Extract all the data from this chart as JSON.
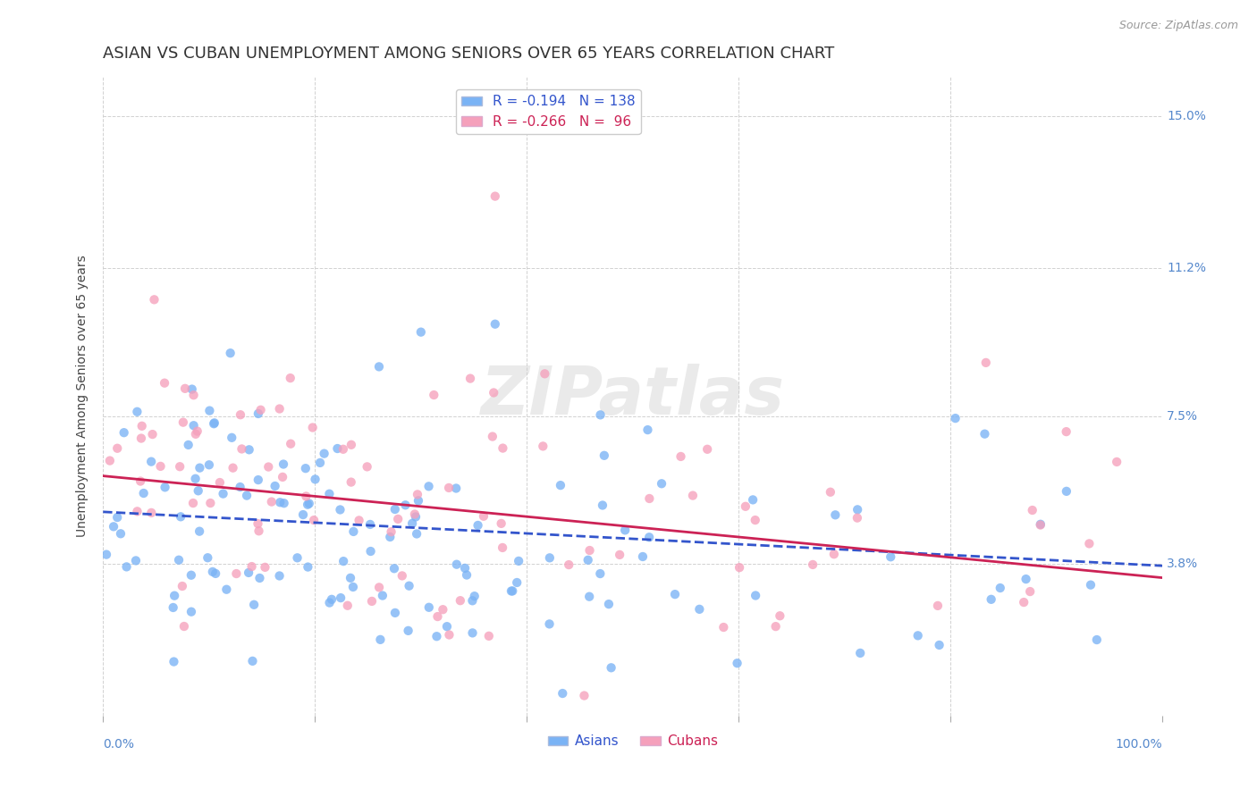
{
  "title": "ASIAN VS CUBAN UNEMPLOYMENT AMONG SENIORS OVER 65 YEARS CORRELATION CHART",
  "source": "Source: ZipAtlas.com",
  "ylabel": "Unemployment Among Seniors over 65 years",
  "xlim": [
    0.0,
    1.0
  ],
  "ylim": [
    0.0,
    0.16
  ],
  "asian_color": "#7ab3f5",
  "cuban_color": "#f5a0bb",
  "asian_line_color": "#3355cc",
  "cuban_line_color": "#cc2255",
  "background_color": "#ffffff",
  "grid_color": "#cccccc",
  "watermark": "ZIPatlas",
  "title_fontsize": 13,
  "axis_label_fontsize": 10,
  "tick_fontsize": 10,
  "legend_fontsize": 11,
  "asian_R": -0.194,
  "asian_N": 138,
  "cuban_R": -0.266,
  "cuban_N": 96,
  "asian_intercept": 0.051,
  "asian_slope": -0.0135,
  "cuban_intercept": 0.06,
  "cuban_slope": -0.0255
}
